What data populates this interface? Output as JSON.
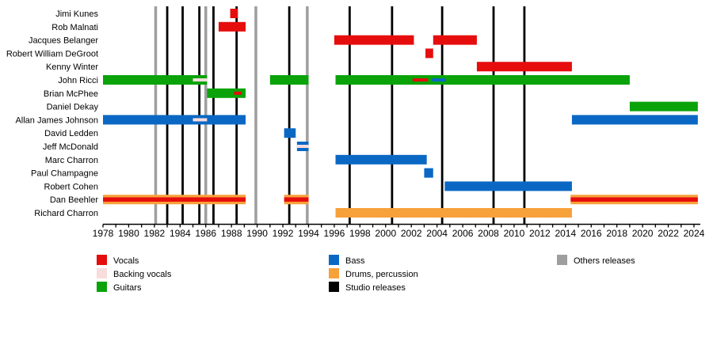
{
  "colors": {
    "vocals": "#e60d0d",
    "backing_vocals": "#f9dcdc",
    "guitars": "#0aa30a",
    "bass": "#0a68c4",
    "drums": "#f7a13b",
    "studio": "#000000",
    "others": "#9e9e9e"
  },
  "chart_data": {
    "type": "timeline",
    "title": "",
    "x_axis": {
      "min": 1978,
      "max": 2024,
      "label_interval": 2,
      "minor_tick_interval": 1,
      "tick_labels": [
        "1978",
        "1980",
        "1982",
        "1984",
        "1986",
        "1988",
        "1990",
        "1992",
        "1994",
        "1996",
        "1998",
        "2000",
        "2002",
        "2004",
        "2006",
        "2008",
        "2010",
        "2012",
        "2014",
        "2016",
        "2018",
        "2020",
        "2022",
        "2024"
      ]
    },
    "members": [
      {
        "name": "Jimi Kunes",
        "bars": [
          {
            "role": "vocals",
            "start": 1987.9,
            "end": 1988.5
          }
        ]
      },
      {
        "name": "Rob Malnati",
        "bars": [
          {
            "role": "vocals",
            "start": 1987.0,
            "end": 1989.1
          }
        ]
      },
      {
        "name": "Jacques Belanger",
        "bars": [
          {
            "role": "vocals",
            "start": 1996.0,
            "end": 2002.2
          },
          {
            "role": "vocals",
            "start": 2003.7,
            "end": 2007.1
          }
        ]
      },
      {
        "name": "Robert William DeGroot",
        "bars": [
          {
            "role": "vocals",
            "start": 2003.1,
            "end": 2003.7
          }
        ]
      },
      {
        "name": "Kenny Winter",
        "bars": [
          {
            "role": "vocals",
            "start": 2007.1,
            "end": 2014.5
          }
        ]
      },
      {
        "name": "John Ricci",
        "bars": [
          {
            "role": "guitars",
            "start": 1978.0,
            "end": 1986.1
          },
          {
            "role": "guitars",
            "start": 1991.0,
            "end": 1994.0
          },
          {
            "role": "guitars",
            "start": 1996.1,
            "end": 2019.0
          }
        ],
        "overlays": [
          {
            "role": "backing_vocals",
            "start": 1985.0,
            "end": 1986.1
          },
          {
            "role": "vocals",
            "start": 2002.1,
            "end": 2003.3
          },
          {
            "role": "bass",
            "start": 2003.6,
            "end": 2004.7
          }
        ]
      },
      {
        "name": "Brian McPhee",
        "bars": [
          {
            "role": "guitars",
            "start": 1986.1,
            "end": 1989.1
          }
        ],
        "overlays": [
          {
            "role": "vocals",
            "start": 1988.2,
            "end": 1988.8
          }
        ]
      },
      {
        "name": "Daniel Dekay",
        "bars": [
          {
            "role": "guitars",
            "start": 2019.0,
            "end": 2024.3
          }
        ]
      },
      {
        "name": "Allan James Johnson",
        "bars": [
          {
            "role": "bass",
            "start": 1978.0,
            "end": 1989.1
          },
          {
            "role": "bass",
            "start": 2014.5,
            "end": 2024.3
          }
        ],
        "overlays": [
          {
            "role": "backing_vocals",
            "start": 1985.0,
            "end": 1986.1
          }
        ]
      },
      {
        "name": "David Ledden",
        "bars": [
          {
            "role": "bass",
            "start": 1992.1,
            "end": 1993.0
          }
        ]
      },
      {
        "name": "Jeff McDonald",
        "bars": [
          {
            "role": "bass",
            "start": 1993.1,
            "end": 1994.0
          }
        ],
        "overlays": [
          {
            "role": "backing_vocals",
            "start": 1993.1,
            "end": 1994.0
          }
        ]
      },
      {
        "name": "Marc Charron",
        "bars": [
          {
            "role": "bass",
            "start": 1996.1,
            "end": 2003.2
          }
        ]
      },
      {
        "name": "Paul Champagne",
        "bars": [
          {
            "role": "bass",
            "start": 2003.0,
            "end": 2003.7
          }
        ]
      },
      {
        "name": "Robert Cohen",
        "bars": [
          {
            "role": "bass",
            "start": 2004.6,
            "end": 2014.5
          }
        ]
      },
      {
        "name": "Dan Beehler",
        "bars": [
          {
            "role": "drums",
            "start": 1978.0,
            "end": 1989.1
          },
          {
            "role": "drums",
            "start": 1992.1,
            "end": 1994.0
          },
          {
            "role": "drums",
            "start": 2014.4,
            "end": 2024.3
          }
        ],
        "overlays": [
          {
            "role": "vocals",
            "start": 1978.0,
            "end": 1989.1,
            "thick": true
          },
          {
            "role": "vocals",
            "start": 1992.1,
            "end": 1994.0,
            "thick": true
          },
          {
            "role": "vocals",
            "start": 2014.4,
            "end": 2024.3,
            "thick": true
          }
        ]
      },
      {
        "name": "Richard Charron",
        "bars": [
          {
            "role": "drums",
            "start": 1996.1,
            "end": 2014.5
          }
        ]
      }
    ],
    "releases": {
      "studio": [
        1983.0,
        1984.2,
        1985.5,
        1986.6,
        1988.4,
        1992.5,
        1997.2,
        2000.5,
        2004.4,
        2008.4,
        2010.8
      ],
      "others": [
        1982.1,
        1986.0,
        1989.9,
        1993.9
      ]
    },
    "legend": {
      "columns": [
        [
          {
            "label": "Vocals",
            "color_key": "vocals"
          },
          {
            "label": "Backing vocals",
            "color_key": "backing_vocals"
          },
          {
            "label": "Guitars",
            "color_key": "guitars"
          }
        ],
        [
          {
            "label": "Bass",
            "color_key": "bass"
          },
          {
            "label": "Drums, percussion",
            "color_key": "drums"
          },
          {
            "label": "Studio releases",
            "color_key": "studio"
          }
        ],
        [
          {
            "label": "Others releases",
            "color_key": "others"
          }
        ]
      ]
    }
  }
}
